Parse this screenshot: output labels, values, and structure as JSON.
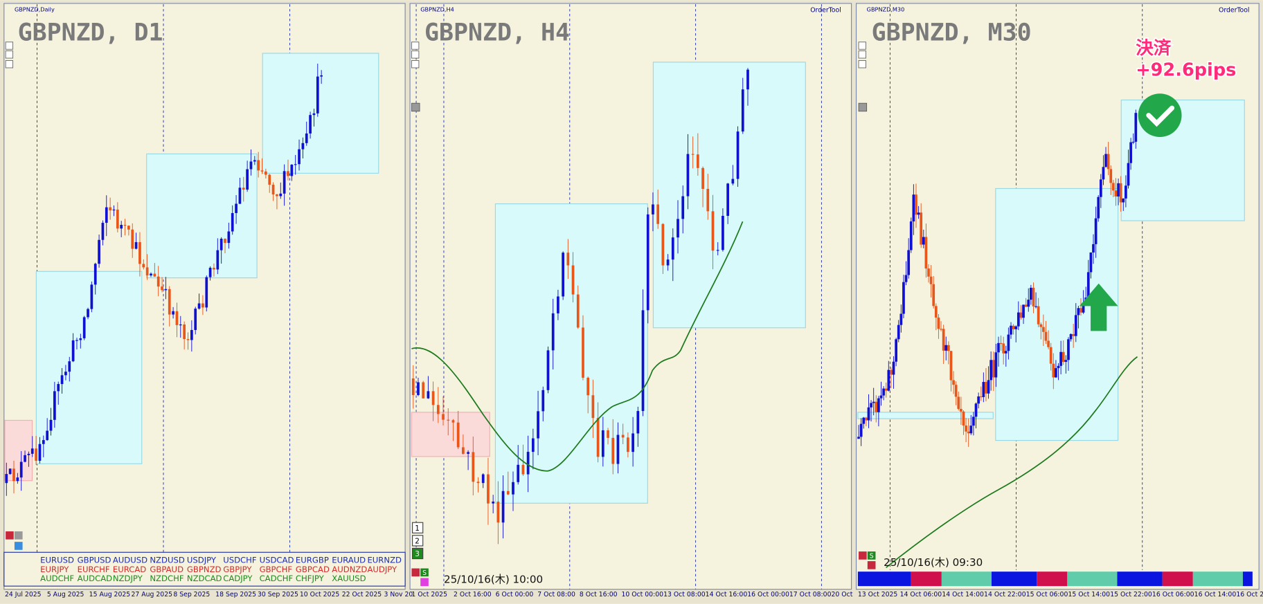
{
  "panels": [
    {
      "header": "GBPNZD,Daily",
      "title": "GBPNZD, D1",
      "xlabels": [
        "24 Jul 2025",
        "5 Aug 2025",
        "15 Aug 2025",
        "27 Aug 2025",
        "8 Sep 2025",
        "18 Sep 2025",
        "30 Sep 2025",
        "10 Oct 2025",
        "22 Oct 2025",
        "3 Nov 20"
      ]
    },
    {
      "header": "GBPNZD,H4",
      "title": "GBPNZD, H4",
      "tool": "OrderTool",
      "buttons": [
        "1",
        "2",
        "3"
      ],
      "s_button": "S",
      "timestamp": "25/10/16(木) 10:00",
      "xlabels": [
        "1 Oct 2025",
        "2 Oct 16:00",
        "6 Oct 00:00",
        "7 Oct 08:00",
        "8 Oct 16:00",
        "10 Oct 00:00",
        "13 Oct 08:00",
        "14 Oct 16:00",
        "16 Oct 00:00",
        "17 Oct 08:00",
        "20 Oct"
      ]
    },
    {
      "header": "GBPNZD,M30",
      "title": "GBPNZD, M30",
      "tool": "OrderTool",
      "s_button": "S",
      "timestamp": "25/10/16(木) 09:30",
      "annotation": [
        "決済",
        "+92.6pips"
      ],
      "xlabels": [
        "13 Oct 2025",
        "14 Oct 06:00",
        "14 Oct 14:00",
        "14 Oct 22:00",
        "15 Oct 06:00",
        "15 Oct 14:00",
        "15 Oct 22:00",
        "16 Oct 06:00",
        "16 Oct 14:00",
        "16 Oct 2"
      ]
    }
  ],
  "symbols": [
    [
      "EURUSD",
      "GBPUSD",
      "AUDUSD",
      "NZDUSD",
      "USDJPY",
      "USDCHF",
      "USDCAD",
      "EURGBP",
      "EURAUD",
      "EURNZD"
    ],
    [
      "EURJPY",
      "EURCHF",
      "EURCAD",
      "GBPAUD",
      "GBPNZD",
      "GBPJPY",
      "GBPCHF",
      "GBPCAD",
      "AUDNZD",
      "AUDJPY"
    ],
    [
      "AUDCHF",
      "AUDCAD",
      "NZDJPY",
      "NZDCHF",
      "NZDCAD",
      "CADJPY",
      "CADCHF",
      "CHFJPY",
      "XAUUSD"
    ]
  ]
}
